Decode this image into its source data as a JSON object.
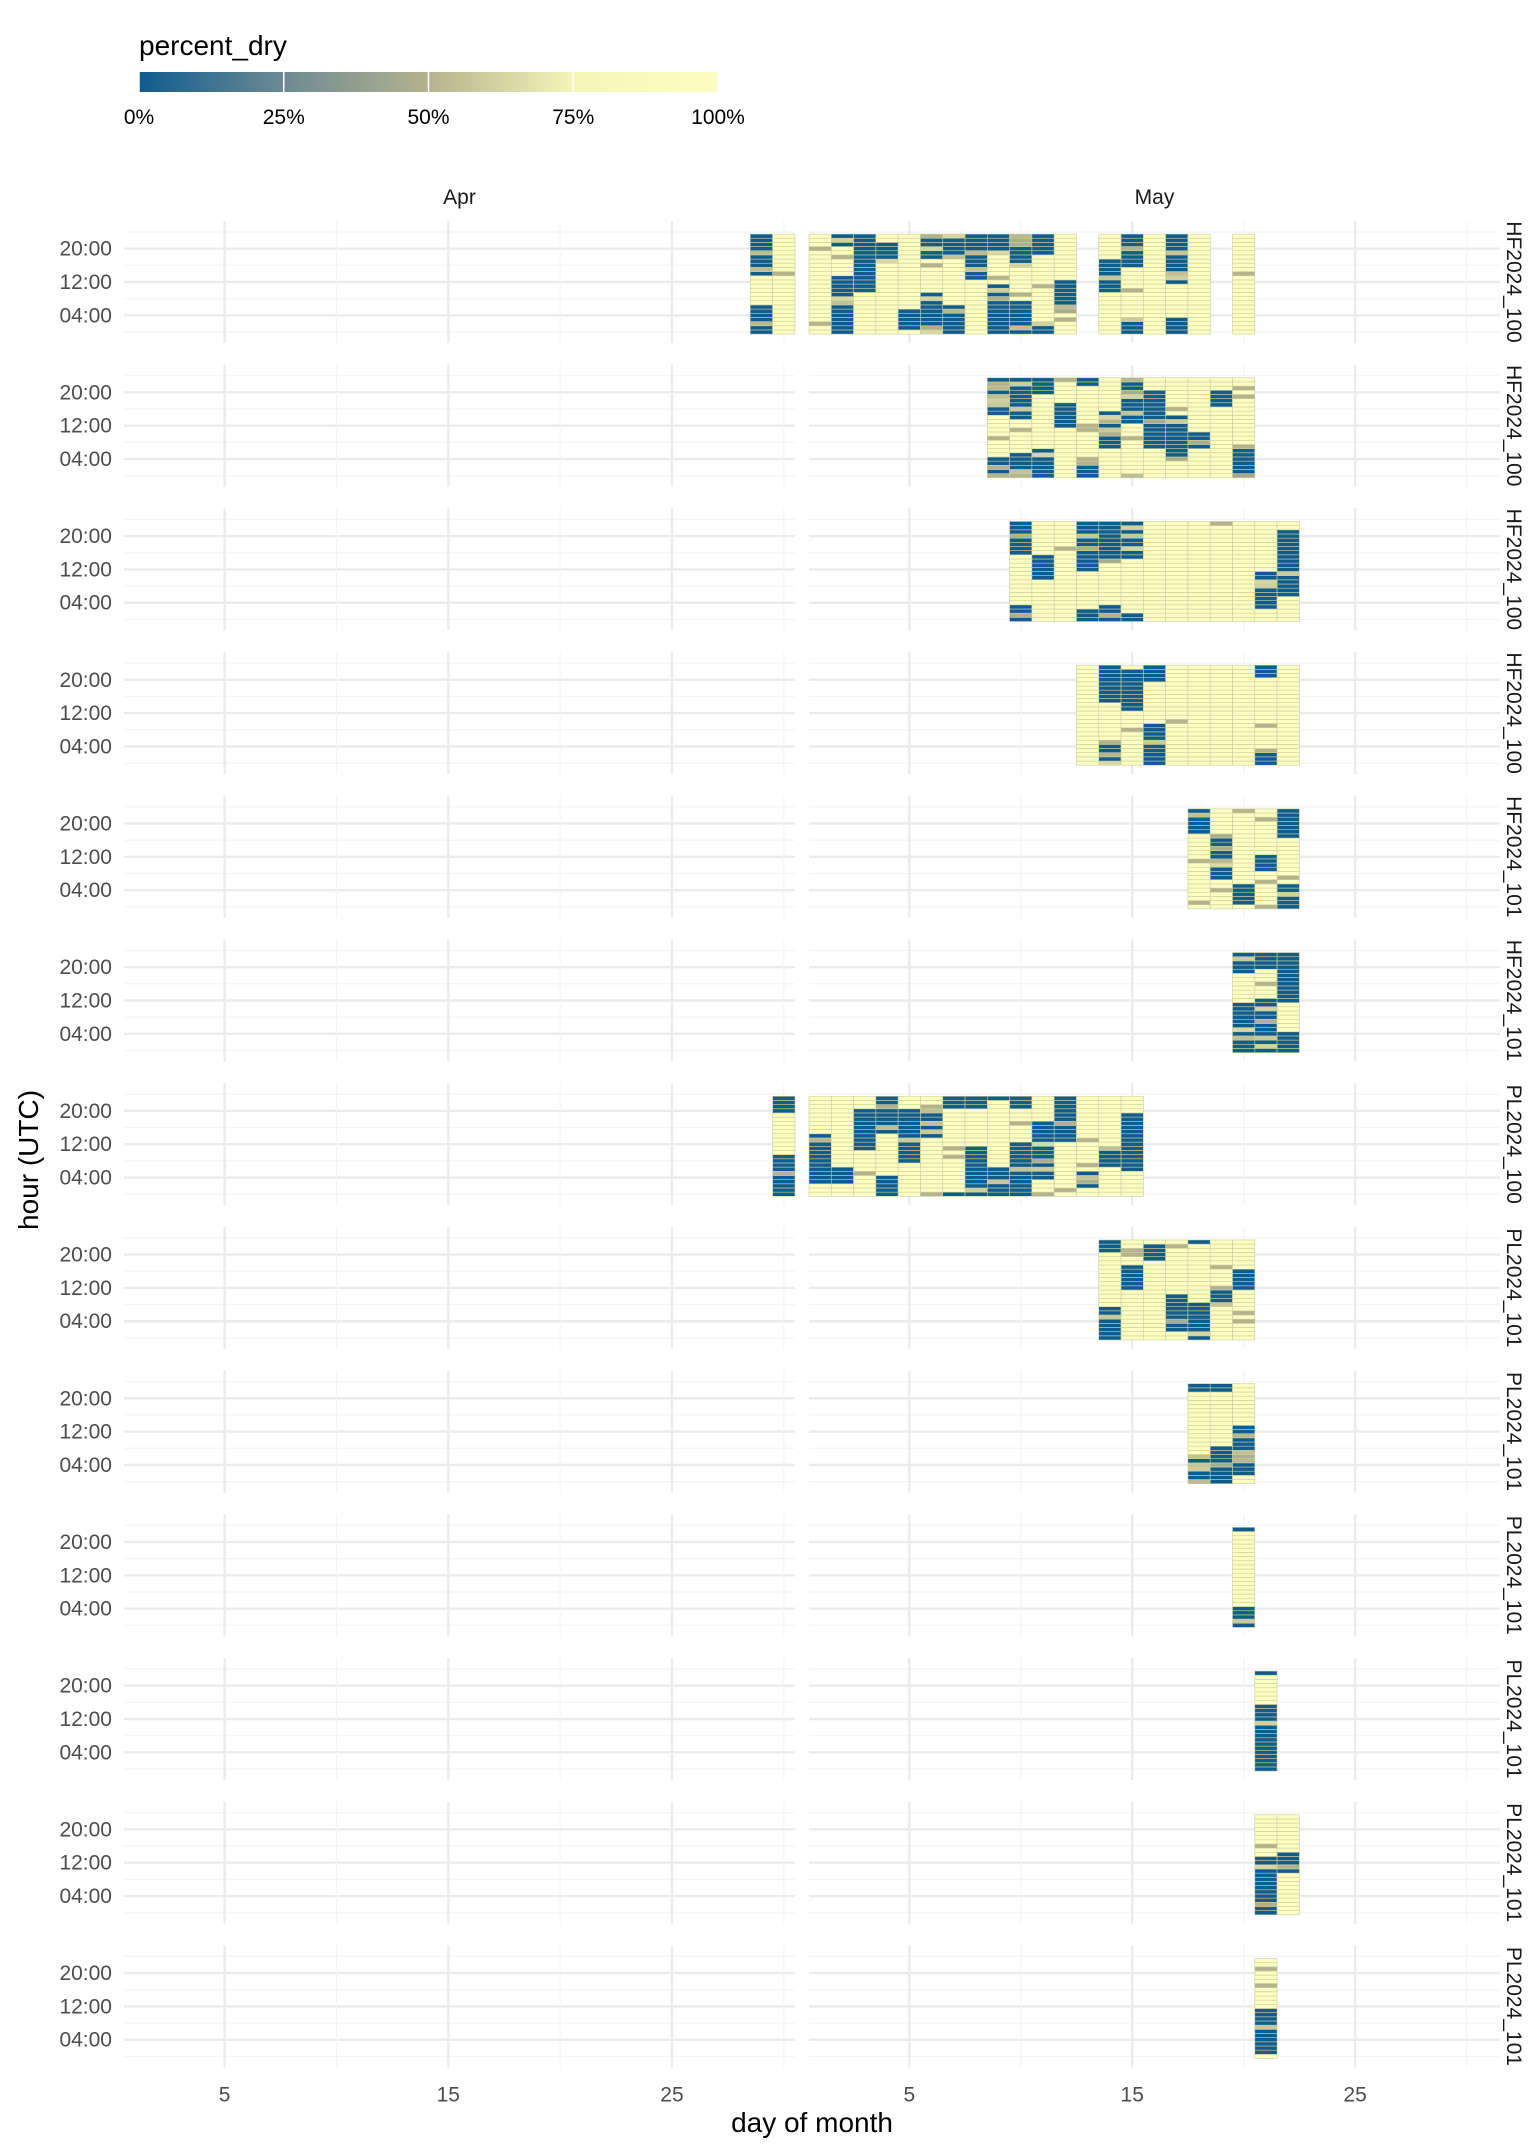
{
  "chart_data": {
    "type": "heatmap",
    "title": "",
    "xlabel": "day of month",
    "ylabel": "hour (UTC)",
    "legend": {
      "title": "percent_dry",
      "placement": "top-left",
      "ticks": [
        "0%",
        "25%",
        "50%",
        "75%",
        "100%"
      ],
      "gradient": [
        "#0f5c8f",
        "#6d8a94",
        "#b4b38d",
        "#f6f5b8",
        "#fdfdc2"
      ]
    },
    "columns": [
      {
        "label": "Apr",
        "xlim": [
          0.5,
          30.5
        ],
        "x_ticks": [
          5,
          15,
          25
        ],
        "x_tick_labels": [
          "5",
          "15",
          "25"
        ]
      },
      {
        "label": "May",
        "xlim": [
          0.5,
          31.5
        ],
        "x_ticks": [
          5,
          15,
          25
        ],
        "x_tick_labels": [
          "5",
          "15",
          "25"
        ]
      }
    ],
    "y_ticks": [
      4,
      12,
      20
    ],
    "y_tick_labels": [
      "04:00",
      "12:00",
      "20:00"
    ],
    "y_range": [
      0,
      24
    ],
    "grid": true,
    "rows": [
      {
        "label": "HF2024_100",
        "apr_days": [
          29,
          30
        ],
        "may_days": [
          1,
          2,
          3,
          4,
          5,
          6,
          7,
          8,
          9,
          10,
          11,
          12,
          14,
          15,
          16,
          17,
          18,
          20
        ],
        "wet_days": [
          29,
          2,
          3,
          4,
          5,
          6,
          7,
          8,
          9,
          10,
          11,
          12,
          14,
          15,
          17
        ],
        "wet_share": 0.3
      },
      {
        "label": "HF2024_100",
        "apr_days": [],
        "may_days": [
          9,
          10,
          11,
          12,
          13,
          14,
          15,
          16,
          17,
          18,
          19,
          20
        ],
        "wet_days": [
          9,
          10,
          11,
          12,
          13,
          14,
          15,
          16,
          17,
          18,
          19,
          20
        ],
        "wet_share": 0.65
      },
      {
        "label": "HF2024_100",
        "apr_days": [],
        "may_days": [
          10,
          11,
          12,
          13,
          14,
          15,
          16,
          17,
          18,
          19,
          20,
          21,
          22
        ],
        "wet_days": [
          10,
          11,
          13,
          14,
          15,
          21,
          22
        ],
        "wet_share": 0.06
      },
      {
        "label": "HF2024_100",
        "apr_days": [],
        "may_days": [
          13,
          14,
          15,
          16,
          17,
          18,
          19,
          20,
          21,
          22
        ],
        "wet_days": [
          14,
          15,
          16,
          21
        ],
        "wet_share": 0.14
      },
      {
        "label": "HF2024_101",
        "apr_days": [],
        "may_days": [
          18,
          19,
          20,
          21,
          22
        ],
        "wet_days": [
          18,
          19,
          20,
          21,
          22
        ],
        "wet_share": 0.45
      },
      {
        "label": "HF2024_101",
        "apr_days": [],
        "may_days": [
          20,
          21,
          22
        ],
        "wet_days": [
          20,
          21,
          22
        ],
        "wet_share": 0.4
      },
      {
        "label": "PL2024_100",
        "apr_days": [
          30
        ],
        "may_days": [
          1,
          2,
          3,
          4,
          5,
          6,
          7,
          8,
          9,
          10,
          11,
          12,
          13,
          14,
          15
        ],
        "wet_days": [
          30,
          1,
          2,
          3,
          4,
          5,
          6,
          7,
          8,
          9,
          10,
          11,
          12,
          13,
          14,
          15
        ],
        "wet_share": 0.35
      },
      {
        "label": "PL2024_101",
        "apr_days": [],
        "may_days": [
          14,
          15,
          16,
          17,
          18,
          19,
          20
        ],
        "wet_days": [
          14,
          15,
          16,
          17,
          18,
          19,
          20
        ],
        "wet_share": 0.55
      },
      {
        "label": "PL2024_101",
        "apr_days": [],
        "may_days": [
          18,
          19,
          20
        ],
        "wet_days": [
          18,
          19,
          20
        ],
        "wet_share": 0.35
      },
      {
        "label": "PL2024_101",
        "apr_days": [],
        "may_days": [
          20
        ],
        "wet_days": [
          20
        ],
        "wet_share": 0.85
      },
      {
        "label": "PL2024_101",
        "apr_days": [],
        "may_days": [
          21
        ],
        "wet_days": [
          21
        ],
        "wet_share": 0.85
      },
      {
        "label": "PL2024_101",
        "apr_days": [],
        "may_days": [
          21,
          22
        ],
        "wet_days": [
          21,
          22
        ],
        "wet_share": 0.15
      },
      {
        "label": "PL2024_101",
        "apr_days": [],
        "may_days": [
          21
        ],
        "wet_days": [
          21
        ],
        "wet_share": 0.9
      }
    ]
  }
}
